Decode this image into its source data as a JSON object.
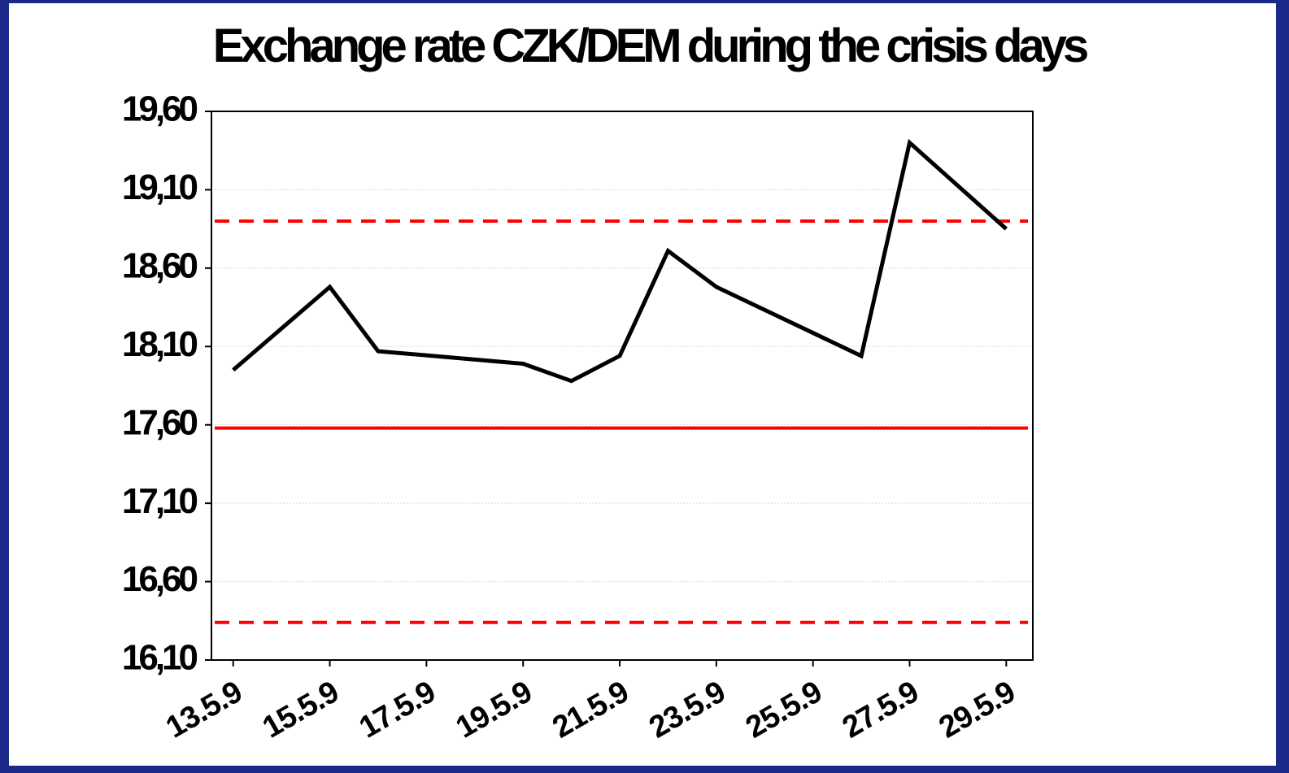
{
  "chart_data": {
    "type": "line",
    "title": "Exchange rate CZK/DEM during the crisis days",
    "x": [
      13,
      15,
      16,
      19,
      20,
      21,
      22,
      23,
      26,
      27,
      29
    ],
    "series": [
      {
        "color": "#000000",
        "values": [
          17.95,
          18.48,
          18.07,
          17.99,
          17.88,
          18.04,
          18.71,
          18.48,
          18.04,
          19.4,
          18.85
        ]
      }
    ],
    "xlim": [
      12.55,
      29.55
    ],
    "xticks": [
      {
        "value": 13,
        "label": "13.5.9"
      },
      {
        "value": 15,
        "label": "15.5.9"
      },
      {
        "value": 17,
        "label": "17.5.9"
      },
      {
        "value": 19,
        "label": "19.5.9"
      },
      {
        "value": 21,
        "label": "21.5.9"
      },
      {
        "value": 23,
        "label": "23.5.9"
      },
      {
        "value": 25,
        "label": "25.5.9"
      },
      {
        "value": 27,
        "label": "27.5.9"
      },
      {
        "value": 29,
        "label": "29.5.9"
      }
    ],
    "ylim": [
      16.1,
      19.6
    ],
    "yticks": [
      {
        "value": 16.1,
        "label": "16,10"
      },
      {
        "value": 16.6,
        "label": "16,60"
      },
      {
        "value": 17.1,
        "label": "17,10"
      },
      {
        "value": 17.6,
        "label": "17,60"
      },
      {
        "value": 18.1,
        "label": "18,10"
      },
      {
        "value": 18.6,
        "label": "18,60"
      },
      {
        "value": 19.1,
        "label": "19,10"
      },
      {
        "value": 19.6,
        "label": "19,60"
      }
    ],
    "grid": true,
    "reference_lines": [
      {
        "value": 17.58,
        "style": "solid",
        "color": "#ff0000"
      },
      {
        "value": 18.9,
        "style": "dashed",
        "color": "#ff0000"
      },
      {
        "value": 16.34,
        "style": "dashed",
        "color": "#ff0000"
      }
    ]
  }
}
